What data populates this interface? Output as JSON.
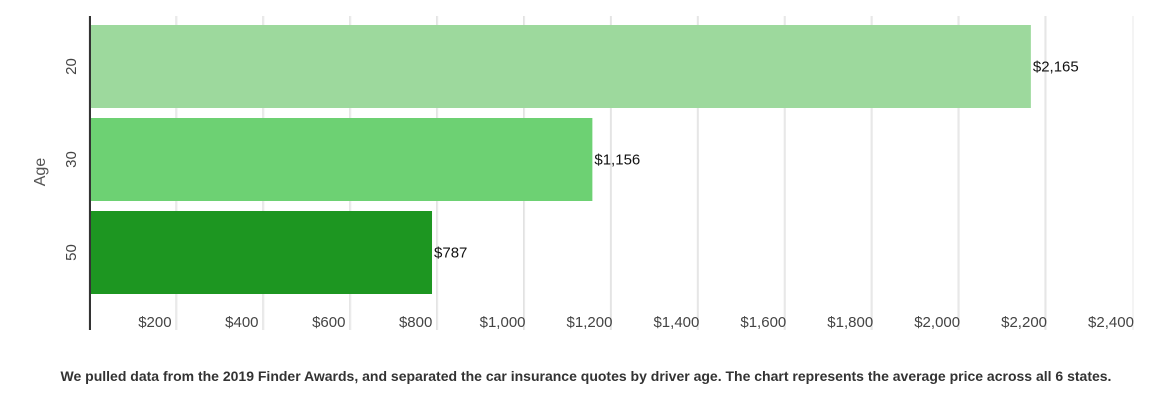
{
  "chart_data": {
    "type": "bar",
    "orientation": "horizontal",
    "categories": [
      "20",
      "30",
      "50"
    ],
    "values": [
      2165,
      1156,
      787
    ],
    "data_labels": [
      "$2,165",
      "$1,156",
      "$787"
    ],
    "bar_colors": [
      "#9dd99d",
      "#6dd173",
      "#1d9621"
    ],
    "ylabel": "Age",
    "xlim": [
      0,
      2400
    ],
    "x_ticks": [
      200,
      400,
      600,
      800,
      1000,
      1200,
      1400,
      1600,
      1800,
      2000,
      2200,
      2400
    ],
    "x_tick_labels": [
      "$200",
      "$400",
      "$600",
      "$800",
      "$1,000",
      "$1,200",
      "$1,400",
      "$1,600",
      "$1,800",
      "$2,000",
      "$2,200",
      "$2,400"
    ],
    "grid": true
  },
  "caption": "We pulled data from the 2019 Finder Awards, and separated the car insurance quotes by driver age. The chart represents the average price across all 6 states."
}
